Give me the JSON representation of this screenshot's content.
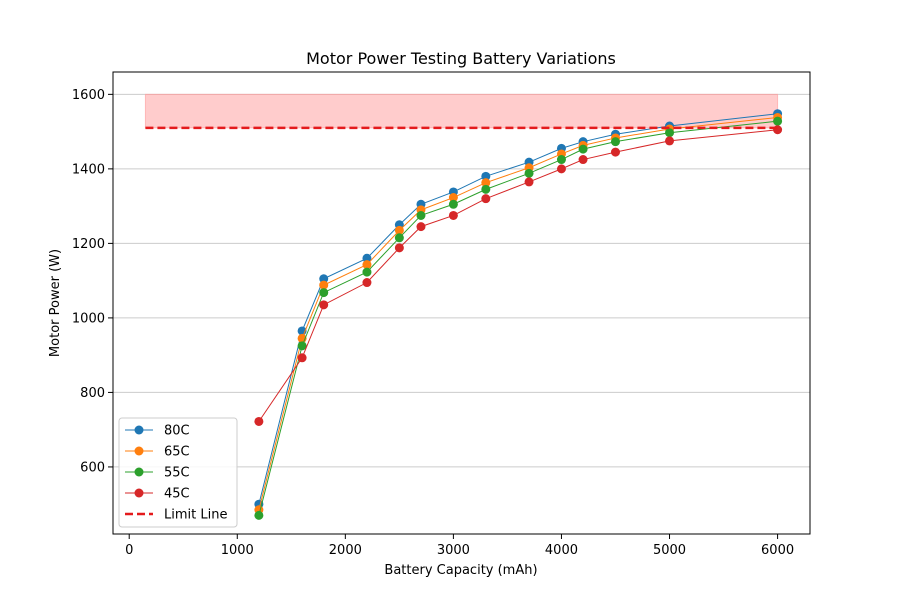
{
  "chart_data": {
    "type": "line",
    "title": "Motor Power Testing Battery Variations",
    "xlabel": "Battery Capacity (mAh)",
    "ylabel": "Motor Power (W)",
    "xlim": [
      -150,
      6300
    ],
    "ylim": [
      420,
      1660
    ],
    "xticks": [
      0,
      1000,
      2000,
      3000,
      4000,
      5000,
      6000
    ],
    "yticks": [
      600,
      800,
      1000,
      1200,
      1400,
      1600
    ],
    "grid": "y",
    "legend_position": "lower-left",
    "x": [
      1200,
      1600,
      1800,
      2200,
      2500,
      2700,
      3000,
      3300,
      3700,
      4000,
      4200,
      4500,
      5000,
      6000
    ],
    "series": [
      {
        "name": "80C",
        "color": "#1f77b4",
        "values": [
          500,
          965,
          1105,
          1160,
          1250,
          1305,
          1338,
          1380,
          1418,
          1455,
          1473,
          1493,
          1515,
          1548
        ]
      },
      {
        "name": "65C",
        "color": "#ff7f0e",
        "values": [
          485,
          945,
          1088,
          1143,
          1235,
          1290,
          1323,
          1363,
          1403,
          1440,
          1463,
          1483,
          1507,
          1538
        ]
      },
      {
        "name": "55C",
        "color": "#2ca02c",
        "values": [
          470,
          925,
          1068,
          1123,
          1215,
          1275,
          1305,
          1345,
          1388,
          1425,
          1453,
          1473,
          1497,
          1528
        ]
      },
      {
        "name": "45C",
        "color": "#d62728",
        "values": [
          722,
          893,
          1035,
          1095,
          1188,
          1245,
          1275,
          1320,
          1365,
          1400,
          1425,
          1445,
          1475,
          1505
        ]
      }
    ],
    "limit_line": {
      "name": "Limit Line",
      "color": "#e41a1c",
      "y": 1510,
      "x_range": [
        150,
        6000
      ]
    },
    "limit_band": {
      "color": "#ff9999",
      "y_range": [
        1510,
        1600
      ],
      "x_range": [
        150,
        6000
      ]
    }
  }
}
